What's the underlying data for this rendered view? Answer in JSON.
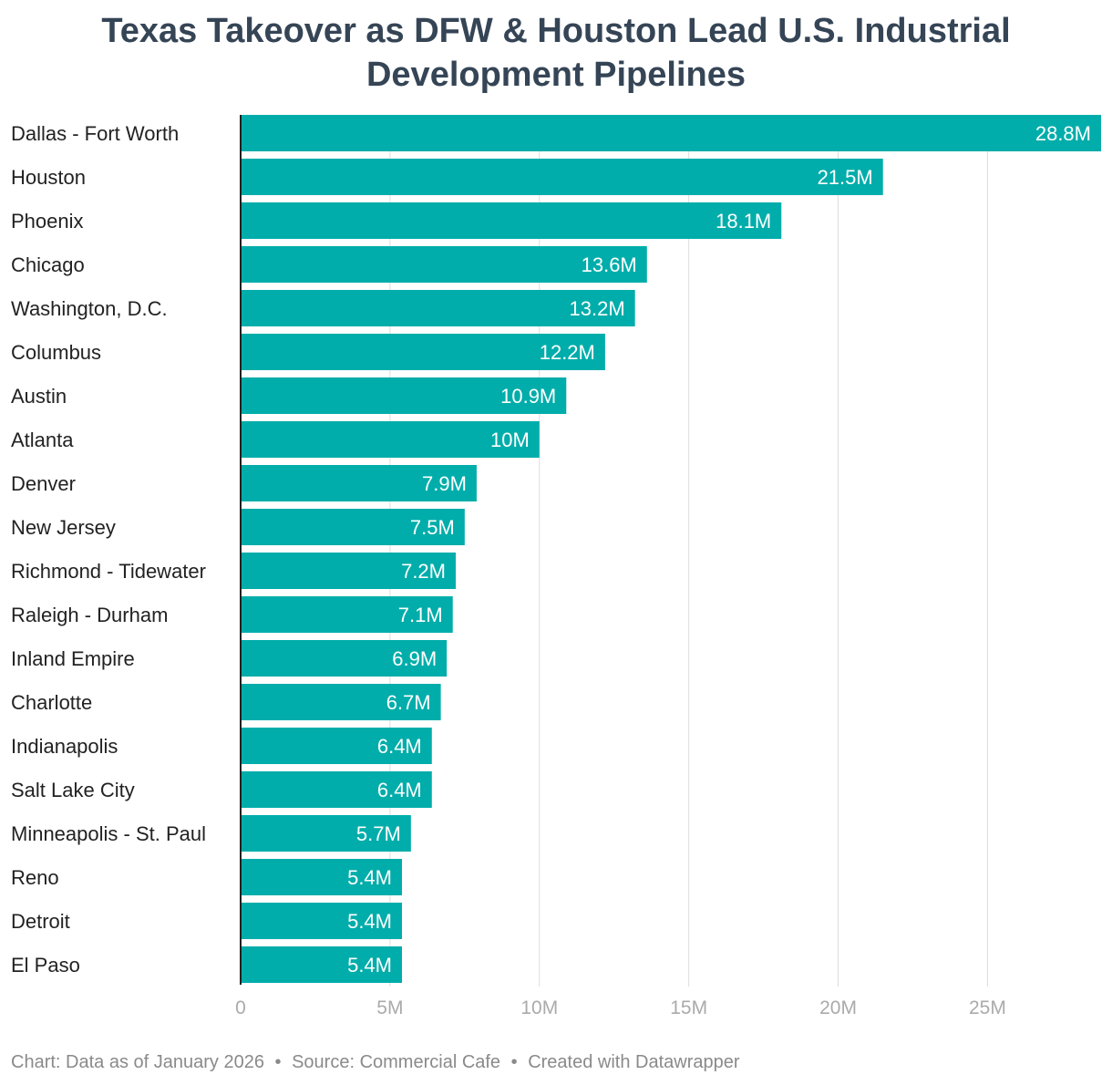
{
  "title_lines": [
    "Texas Takeover as DFW & Houston Lead U.S. Industrial",
    "Development Pipelines"
  ],
  "footer": {
    "chart_note": "Chart: Data as of January 2026",
    "source": "Source: Commercial Cafe",
    "credit": "Created with Datawrapper",
    "separator": "•"
  },
  "colors": {
    "bar": "#00ADAA",
    "title": "#354556",
    "label": "#222222",
    "value_label": "#ffffff",
    "grid": "#dddddd",
    "axis": "#222222",
    "tick": "#aaaaaa",
    "footer": "#8a8a8a"
  },
  "chart_data": {
    "type": "bar",
    "orientation": "horizontal",
    "title": "Texas Takeover as DFW & Houston Lead U.S. Industrial Development Pipelines",
    "categories": [
      "Dallas - Fort Worth",
      "Houston",
      "Phoenix",
      "Chicago",
      "Washington, D.C.",
      "Columbus",
      "Austin",
      "Atlanta",
      "Denver",
      "New Jersey",
      "Richmond - Tidewater",
      "Raleigh - Durham",
      "Inland Empire",
      "Charlotte",
      "Indianapolis",
      "Salt Lake City",
      "Minneapolis - St. Paul",
      "Reno",
      "Detroit",
      "El Paso"
    ],
    "values": [
      28.8,
      21.5,
      18.1,
      13.6,
      13.2,
      12.2,
      10.9,
      10.0,
      7.9,
      7.5,
      7.2,
      7.1,
      6.9,
      6.7,
      6.4,
      6.4,
      5.7,
      5.4,
      5.4,
      5.4
    ],
    "value_labels": [
      "28.8M",
      "21.5M",
      "18.1M",
      "13.6M",
      "13.2M",
      "12.2M",
      "10.9M",
      "10M",
      "7.9M",
      "7.5M",
      "7.2M",
      "7.1M",
      "6.9M",
      "6.7M",
      "6.4M",
      "6.4M",
      "5.7M",
      "5.4M",
      "5.4M",
      "5.4M"
    ],
    "x_ticks": [
      0,
      5,
      10,
      15,
      20,
      25
    ],
    "x_tick_labels": [
      "0",
      "5M",
      "10M",
      "15M",
      "20M",
      "25M"
    ],
    "xlim": [
      0,
      28.8
    ],
    "xlabel": "",
    "ylabel": "",
    "grid": true,
    "legend": "none"
  }
}
